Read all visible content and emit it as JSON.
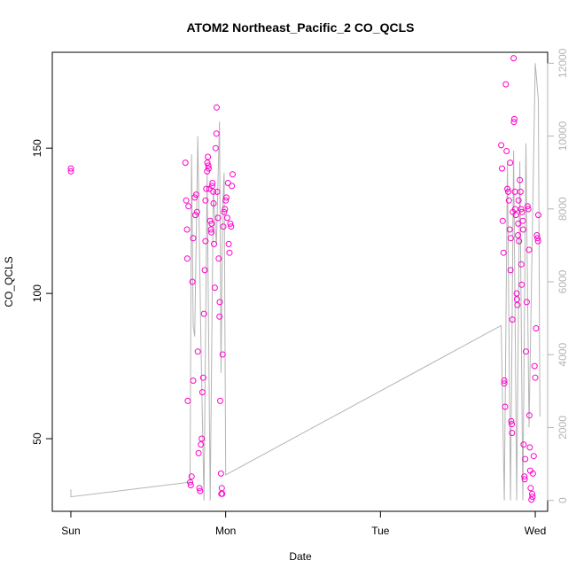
{
  "chart_data": {
    "type": "scatter",
    "title": "ATOM2 Northeast_Pacific_2 CO_QCLS",
    "xlabel": "Date",
    "ylabel": "CO_QCLS",
    "x_ticks": [
      "Sun",
      "Mon",
      "Tue",
      "Wed"
    ],
    "xlim_days": [
      -0.12,
      3.08
    ],
    "ylim": [
      25,
      183
    ],
    "y_ticks": [
      50,
      100,
      150
    ],
    "secondary_axis": {
      "side": "right",
      "ticks": [
        0,
        2000,
        4000,
        6000,
        8000,
        10000,
        12000
      ],
      "ylim": [
        -300,
        12300
      ],
      "color": "#b4b4b4"
    },
    "series": [
      {
        "kind": "points",
        "color": "#ff00cc",
        "points": [
          [
            0.0,
            143
          ],
          [
            0.0,
            142
          ],
          [
            0.74,
            145
          ],
          [
            0.745,
            132
          ],
          [
            0.75,
            122
          ],
          [
            0.752,
            112
          ],
          [
            0.755,
            63
          ],
          [
            0.76,
            130
          ],
          [
            0.77,
            35
          ],
          [
            0.775,
            34
          ],
          [
            0.78,
            37
          ],
          [
            0.785,
            104
          ],
          [
            0.79,
            119
          ],
          [
            0.79,
            70
          ],
          [
            0.8,
            133
          ],
          [
            0.805,
            127
          ],
          [
            0.81,
            134
          ],
          [
            0.815,
            128
          ],
          [
            0.82,
            80
          ],
          [
            0.825,
            45
          ],
          [
            0.83,
            33
          ],
          [
            0.835,
            32
          ],
          [
            0.84,
            48
          ],
          [
            0.845,
            50
          ],
          [
            0.85,
            66
          ],
          [
            0.855,
            71
          ],
          [
            0.86,
            93
          ],
          [
            0.865,
            108
          ],
          [
            0.87,
            118
          ],
          [
            0.87,
            132
          ],
          [
            0.875,
            136
          ],
          [
            0.88,
            142
          ],
          [
            0.882,
            145
          ],
          [
            0.885,
            147
          ],
          [
            0.888,
            144
          ],
          [
            0.89,
            143
          ],
          [
            0.895,
            136
          ],
          [
            0.9,
            125
          ],
          [
            0.905,
            122
          ],
          [
            0.908,
            121
          ],
          [
            0.91,
            124
          ],
          [
            0.912,
            137
          ],
          [
            0.915,
            138
          ],
          [
            0.92,
            135
          ],
          [
            0.922,
            131
          ],
          [
            0.925,
            117
          ],
          [
            0.93,
            102
          ],
          [
            0.935,
            150
          ],
          [
            0.94,
            155
          ],
          [
            0.942,
            164
          ],
          [
            0.945,
            135
          ],
          [
            0.95,
            126
          ],
          [
            0.955,
            112
          ],
          [
            0.96,
            92
          ],
          [
            0.962,
            97
          ],
          [
            0.965,
            63
          ],
          [
            0.97,
            38
          ],
          [
            0.972,
            31
          ],
          [
            0.975,
            33
          ],
          [
            0.978,
            31
          ],
          [
            0.98,
            79
          ],
          [
            0.985,
            123
          ],
          [
            0.99,
            128
          ],
          [
            0.995,
            129
          ],
          [
            1.0,
            132
          ],
          [
            1.005,
            133
          ],
          [
            1.01,
            126
          ],
          [
            1.015,
            138
          ],
          [
            1.02,
            117
          ],
          [
            1.025,
            114
          ],
          [
            1.03,
            124
          ],
          [
            1.035,
            123
          ],
          [
            1.04,
            137
          ],
          [
            1.045,
            141
          ],
          [
            2.78,
            151
          ],
          [
            2.785,
            143
          ],
          [
            2.79,
            125
          ],
          [
            2.795,
            114
          ],
          [
            2.8,
            70
          ],
          [
            2.8,
            69
          ],
          [
            2.805,
            61
          ],
          [
            2.81,
            172
          ],
          [
            2.815,
            149
          ],
          [
            2.82,
            136
          ],
          [
            2.825,
            135
          ],
          [
            2.83,
            132
          ],
          [
            2.835,
            122
          ],
          [
            2.838,
            145
          ],
          [
            2.84,
            108
          ],
          [
            2.842,
            119
          ],
          [
            2.845,
            56
          ],
          [
            2.848,
            55
          ],
          [
            2.85,
            52
          ],
          [
            2.852,
            91
          ],
          [
            2.855,
            128
          ],
          [
            2.86,
            181
          ],
          [
            2.862,
            159
          ],
          [
            2.865,
            160
          ],
          [
            2.868,
            135
          ],
          [
            2.87,
            129
          ],
          [
            2.875,
            127
          ],
          [
            2.88,
            100
          ],
          [
            2.882,
            98
          ],
          [
            2.885,
            96
          ],
          [
            2.888,
            120
          ],
          [
            2.89,
            124
          ],
          [
            2.892,
            132
          ],
          [
            2.895,
            118
          ],
          [
            2.9,
            139
          ],
          [
            2.905,
            135
          ],
          [
            2.908,
            129
          ],
          [
            2.91,
            110
          ],
          [
            2.912,
            103
          ],
          [
            2.915,
            128
          ],
          [
            2.92,
            125
          ],
          [
            2.922,
            122
          ],
          [
            2.925,
            48
          ],
          [
            2.93,
            37
          ],
          [
            2.932,
            36
          ],
          [
            2.935,
            43
          ],
          [
            2.94,
            80
          ],
          [
            2.945,
            97
          ],
          [
            2.95,
            130
          ],
          [
            2.955,
            129
          ],
          [
            2.96,
            115
          ],
          [
            2.962,
            58
          ],
          [
            2.965,
            47
          ],
          [
            2.968,
            39
          ],
          [
            2.97,
            33
          ],
          [
            2.975,
            29
          ],
          [
            2.98,
            31
          ],
          [
            2.982,
            30
          ],
          [
            2.985,
            38
          ],
          [
            2.99,
            44
          ],
          [
            2.995,
            75
          ],
          [
            3.0,
            71
          ],
          [
            3.005,
            88
          ],
          [
            3.01,
            120
          ],
          [
            3.015,
            119
          ],
          [
            3.018,
            118
          ],
          [
            3.02,
            127
          ]
        ]
      },
      {
        "kind": "line",
        "axis": "secondary",
        "color": "#b4b4b4",
        "points": [
          [
            0.0,
            300
          ],
          [
            0.0,
            100
          ],
          [
            0.77,
            500
          ],
          [
            0.78,
            9500
          ],
          [
            0.79,
            4800
          ],
          [
            0.8,
            4500
          ],
          [
            0.82,
            10000
          ],
          [
            0.84,
            4400
          ],
          [
            0.86,
            0
          ],
          [
            0.88,
            9000
          ],
          [
            0.9,
            0
          ],
          [
            0.92,
            8500
          ],
          [
            0.94,
            7000
          ],
          [
            0.96,
            10400
          ],
          [
            0.97,
            3500
          ],
          [
            0.98,
            8000
          ],
          [
            0.99,
            9000
          ],
          [
            1.0,
            700
          ],
          [
            1.0,
            700
          ],
          [
            2.78,
            4800
          ],
          [
            2.8,
            0
          ],
          [
            2.82,
            9300
          ],
          [
            2.84,
            0
          ],
          [
            2.86,
            9600
          ],
          [
            2.88,
            0
          ],
          [
            2.9,
            9300
          ],
          [
            2.92,
            0
          ],
          [
            2.94,
            9800
          ],
          [
            2.96,
            2000
          ],
          [
            3.0,
            12000
          ],
          [
            3.02,
            11000
          ],
          [
            3.03,
            2300
          ]
        ]
      }
    ]
  }
}
